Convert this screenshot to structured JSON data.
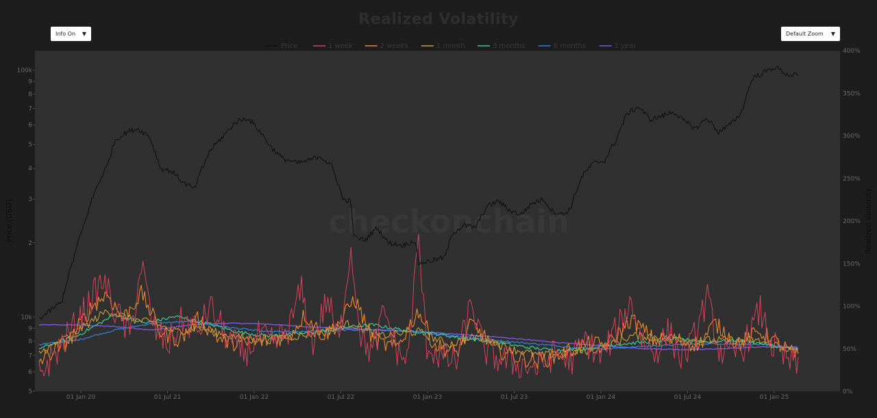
{
  "page": {
    "title": "Realized Volatility",
    "info_dropdown": {
      "selected": "Info On"
    },
    "zoom_dropdown": {
      "selected": "Default Zoom"
    },
    "watermark": "checkonchain",
    "colors": {
      "background": "#1d1d1d",
      "plot_bg": "#303030",
      "price": "#101010",
      "1 week": "#d9435c",
      "2 weeks": "#f08a2c",
      "1 month": "#c9a140",
      "3 months": "#37c98e",
      "6 months": "#2f7fe0",
      "1 year": "#7b59e0"
    }
  },
  "chart_data": {
    "type": "line",
    "title": "Realized Volatility",
    "legend": {
      "position": "top-center",
      "entries": [
        "Price",
        "1 week",
        "2 weeks",
        "1 month",
        "3 months",
        "6 months",
        "1 year"
      ]
    },
    "x_tick_labels": [
      "01 Jan 20",
      "01 Jul 21",
      "01 Jan 22",
      "01 Jul 22",
      "01 Jan 23",
      "01 Jul 23",
      "01 Jan 24",
      "01 Jul 24",
      "01 Jan 25"
    ],
    "y_left": {
      "label": "Price [USD]",
      "scale": "log",
      "range": [
        5000,
        120000
      ],
      "tick_labels": [
        "100k",
        "9",
        "8",
        "7",
        "6",
        "5",
        "4",
        "3",
        "2",
        "10k",
        "9",
        "8",
        "7",
        "6",
        "5"
      ]
    },
    "y_right": {
      "label": "Realized Volatility",
      "range": [
        0,
        400
      ],
      "tick_labels": [
        "0%",
        "50%",
        "100%",
        "150%",
        "200%",
        "250%",
        "300%",
        "350%",
        "400%"
      ]
    },
    "grid": false,
    "price_anchors": [
      {
        "x": 0.0,
        "y": 9800
      },
      {
        "x": 0.03,
        "y": 11500
      },
      {
        "x": 0.045,
        "y": 17000
      },
      {
        "x": 0.06,
        "y": 24000
      },
      {
        "x": 0.075,
        "y": 33000
      },
      {
        "x": 0.09,
        "y": 41000
      },
      {
        "x": 0.1,
        "y": 52000
      },
      {
        "x": 0.115,
        "y": 56000
      },
      {
        "x": 0.13,
        "y": 58000
      },
      {
        "x": 0.145,
        "y": 54000
      },
      {
        "x": 0.16,
        "y": 40000
      },
      {
        "x": 0.175,
        "y": 39000
      },
      {
        "x": 0.19,
        "y": 35000
      },
      {
        "x": 0.205,
        "y": 33000
      },
      {
        "x": 0.225,
        "y": 47000
      },
      {
        "x": 0.245,
        "y": 55000
      },
      {
        "x": 0.26,
        "y": 62000
      },
      {
        "x": 0.275,
        "y": 64000
      },
      {
        "x": 0.29,
        "y": 57000
      },
      {
        "x": 0.305,
        "y": 49000
      },
      {
        "x": 0.32,
        "y": 44000
      },
      {
        "x": 0.34,
        "y": 42000
      },
      {
        "x": 0.355,
        "y": 43000
      },
      {
        "x": 0.37,
        "y": 45000
      },
      {
        "x": 0.385,
        "y": 41000
      },
      {
        "x": 0.395,
        "y": 34000
      },
      {
        "x": 0.4,
        "y": 30000
      },
      {
        "x": 0.41,
        "y": 29500
      },
      {
        "x": 0.415,
        "y": 21000
      },
      {
        "x": 0.43,
        "y": 20500
      },
      {
        "x": 0.445,
        "y": 23000
      },
      {
        "x": 0.46,
        "y": 20000
      },
      {
        "x": 0.48,
        "y": 19500
      },
      {
        "x": 0.495,
        "y": 20500
      },
      {
        "x": 0.5,
        "y": 16500
      },
      {
        "x": 0.52,
        "y": 17000
      },
      {
        "x": 0.535,
        "y": 17500
      },
      {
        "x": 0.545,
        "y": 22000
      },
      {
        "x": 0.56,
        "y": 23500
      },
      {
        "x": 0.575,
        "y": 23000
      },
      {
        "x": 0.59,
        "y": 28000
      },
      {
        "x": 0.605,
        "y": 29500
      },
      {
        "x": 0.62,
        "y": 27000
      },
      {
        "x": 0.635,
        "y": 26000
      },
      {
        "x": 0.65,
        "y": 29000
      },
      {
        "x": 0.665,
        "y": 30000
      },
      {
        "x": 0.675,
        "y": 27000
      },
      {
        "x": 0.69,
        "y": 26000
      },
      {
        "x": 0.7,
        "y": 27500
      },
      {
        "x": 0.715,
        "y": 37000
      },
      {
        "x": 0.73,
        "y": 42000
      },
      {
        "x": 0.745,
        "y": 43000
      },
      {
        "x": 0.76,
        "y": 52000
      },
      {
        "x": 0.775,
        "y": 67000
      },
      {
        "x": 0.79,
        "y": 71000
      },
      {
        "x": 0.805,
        "y": 63000
      },
      {
        "x": 0.82,
        "y": 65000
      },
      {
        "x": 0.835,
        "y": 68000
      },
      {
        "x": 0.85,
        "y": 62000
      },
      {
        "x": 0.865,
        "y": 58000
      },
      {
        "x": 0.88,
        "y": 64000
      },
      {
        "x": 0.895,
        "y": 56000
      },
      {
        "x": 0.91,
        "y": 60000
      },
      {
        "x": 0.925,
        "y": 67000
      },
      {
        "x": 0.94,
        "y": 93000
      },
      {
        "x": 0.955,
        "y": 98000
      },
      {
        "x": 0.97,
        "y": 103000
      },
      {
        "x": 0.985,
        "y": 96000
      },
      {
        "x": 1.0,
        "y": 95000
      }
    ],
    "vol_anchors": {
      "1 week": [
        {
          "x": 0.0,
          "y": 20
        },
        {
          "x": 0.03,
          "y": 55
        },
        {
          "x": 0.05,
          "y": 80
        },
        {
          "x": 0.07,
          "y": 110
        },
        {
          "x": 0.085,
          "y": 130
        },
        {
          "x": 0.1,
          "y": 95
        },
        {
          "x": 0.12,
          "y": 65
        },
        {
          "x": 0.135,
          "y": 150
        },
        {
          "x": 0.15,
          "y": 75
        },
        {
          "x": 0.17,
          "y": 55
        },
        {
          "x": 0.19,
          "y": 85
        },
        {
          "x": 0.21,
          "y": 70
        },
        {
          "x": 0.225,
          "y": 100
        },
        {
          "x": 0.25,
          "y": 60
        },
        {
          "x": 0.27,
          "y": 45
        },
        {
          "x": 0.29,
          "y": 65
        },
        {
          "x": 0.31,
          "y": 55
        },
        {
          "x": 0.33,
          "y": 75
        },
        {
          "x": 0.345,
          "y": 120
        },
        {
          "x": 0.36,
          "y": 55
        },
        {
          "x": 0.38,
          "y": 110
        },
        {
          "x": 0.395,
          "y": 55
        },
        {
          "x": 0.41,
          "y": 170
        },
        {
          "x": 0.425,
          "y": 60
        },
        {
          "x": 0.44,
          "y": 45
        },
        {
          "x": 0.455,
          "y": 95
        },
        {
          "x": 0.47,
          "y": 50
        },
        {
          "x": 0.485,
          "y": 35
        },
        {
          "x": 0.5,
          "y": 180
        },
        {
          "x": 0.51,
          "y": 55
        },
        {
          "x": 0.53,
          "y": 40
        },
        {
          "x": 0.55,
          "y": 35
        },
        {
          "x": 0.57,
          "y": 105
        },
        {
          "x": 0.585,
          "y": 50
        },
        {
          "x": 0.6,
          "y": 40
        },
        {
          "x": 0.62,
          "y": 35
        },
        {
          "x": 0.64,
          "y": 30
        },
        {
          "x": 0.66,
          "y": 28
        },
        {
          "x": 0.68,
          "y": 45
        },
        {
          "x": 0.7,
          "y": 35
        },
        {
          "x": 0.72,
          "y": 60
        },
        {
          "x": 0.74,
          "y": 40
        },
        {
          "x": 0.76,
          "y": 70
        },
        {
          "x": 0.78,
          "y": 105
        },
        {
          "x": 0.795,
          "y": 60
        },
        {
          "x": 0.81,
          "y": 45
        },
        {
          "x": 0.83,
          "y": 70
        },
        {
          "x": 0.845,
          "y": 40
        },
        {
          "x": 0.86,
          "y": 55
        },
        {
          "x": 0.88,
          "y": 110
        },
        {
          "x": 0.895,
          "y": 50
        },
        {
          "x": 0.91,
          "y": 40
        },
        {
          "x": 0.93,
          "y": 55
        },
        {
          "x": 0.95,
          "y": 95
        },
        {
          "x": 0.965,
          "y": 55
        },
        {
          "x": 0.98,
          "y": 40
        },
        {
          "x": 1.0,
          "y": 30
        }
      ],
      "2 weeks": [
        {
          "x": 0.0,
          "y": 35
        },
        {
          "x": 0.04,
          "y": 60
        },
        {
          "x": 0.07,
          "y": 100
        },
        {
          "x": 0.09,
          "y": 115
        },
        {
          "x": 0.11,
          "y": 85
        },
        {
          "x": 0.135,
          "y": 115
        },
        {
          "x": 0.16,
          "y": 70
        },
        {
          "x": 0.185,
          "y": 60
        },
        {
          "x": 0.21,
          "y": 85
        },
        {
          "x": 0.24,
          "y": 60
        },
        {
          "x": 0.27,
          "y": 55
        },
        {
          "x": 0.3,
          "y": 60
        },
        {
          "x": 0.33,
          "y": 65
        },
        {
          "x": 0.35,
          "y": 90
        },
        {
          "x": 0.375,
          "y": 65
        },
        {
          "x": 0.4,
          "y": 85
        },
        {
          "x": 0.415,
          "y": 110
        },
        {
          "x": 0.44,
          "y": 60
        },
        {
          "x": 0.47,
          "y": 50
        },
        {
          "x": 0.5,
          "y": 95
        },
        {
          "x": 0.52,
          "y": 55
        },
        {
          "x": 0.55,
          "y": 45
        },
        {
          "x": 0.57,
          "y": 80
        },
        {
          "x": 0.6,
          "y": 50
        },
        {
          "x": 0.63,
          "y": 40
        },
        {
          "x": 0.66,
          "y": 35
        },
        {
          "x": 0.69,
          "y": 45
        },
        {
          "x": 0.72,
          "y": 55
        },
        {
          "x": 0.75,
          "y": 55
        },
        {
          "x": 0.78,
          "y": 85
        },
        {
          "x": 0.81,
          "y": 60
        },
        {
          "x": 0.84,
          "y": 60
        },
        {
          "x": 0.87,
          "y": 55
        },
        {
          "x": 0.89,
          "y": 80
        },
        {
          "x": 0.92,
          "y": 55
        },
        {
          "x": 0.95,
          "y": 70
        },
        {
          "x": 0.975,
          "y": 55
        },
        {
          "x": 1.0,
          "y": 40
        }
      ],
      "1 month": [
        {
          "x": 0.0,
          "y": 45
        },
        {
          "x": 0.05,
          "y": 70
        },
        {
          "x": 0.09,
          "y": 95
        },
        {
          "x": 0.12,
          "y": 85
        },
        {
          "x": 0.15,
          "y": 80
        },
        {
          "x": 0.18,
          "y": 70
        },
        {
          "x": 0.21,
          "y": 75
        },
        {
          "x": 0.25,
          "y": 65
        },
        {
          "x": 0.3,
          "y": 60
        },
        {
          "x": 0.34,
          "y": 65
        },
        {
          "x": 0.38,
          "y": 70
        },
        {
          "x": 0.41,
          "y": 80
        },
        {
          "x": 0.45,
          "y": 65
        },
        {
          "x": 0.5,
          "y": 70
        },
        {
          "x": 0.54,
          "y": 55
        },
        {
          "x": 0.58,
          "y": 65
        },
        {
          "x": 0.62,
          "y": 50
        },
        {
          "x": 0.66,
          "y": 42
        },
        {
          "x": 0.7,
          "y": 45
        },
        {
          "x": 0.74,
          "y": 50
        },
        {
          "x": 0.78,
          "y": 65
        },
        {
          "x": 0.82,
          "y": 65
        },
        {
          "x": 0.86,
          "y": 60
        },
        {
          "x": 0.9,
          "y": 60
        },
        {
          "x": 0.94,
          "y": 60
        },
        {
          "x": 0.97,
          "y": 55
        },
        {
          "x": 1.0,
          "y": 45
        }
      ],
      "3 months": [
        {
          "x": 0.0,
          "y": 50
        },
        {
          "x": 0.05,
          "y": 65
        },
        {
          "x": 0.1,
          "y": 90
        },
        {
          "x": 0.14,
          "y": 80
        },
        {
          "x": 0.18,
          "y": 88
        },
        {
          "x": 0.22,
          "y": 80
        },
        {
          "x": 0.26,
          "y": 70
        },
        {
          "x": 0.3,
          "y": 65
        },
        {
          "x": 0.35,
          "y": 68
        },
        {
          "x": 0.4,
          "y": 75
        },
        {
          "x": 0.44,
          "y": 78
        },
        {
          "x": 0.48,
          "y": 72
        },
        {
          "x": 0.52,
          "y": 68
        },
        {
          "x": 0.56,
          "y": 62
        },
        {
          "x": 0.6,
          "y": 58
        },
        {
          "x": 0.64,
          "y": 52
        },
        {
          "x": 0.68,
          "y": 48
        },
        {
          "x": 0.72,
          "y": 50
        },
        {
          "x": 0.76,
          "y": 55
        },
        {
          "x": 0.8,
          "y": 58
        },
        {
          "x": 0.84,
          "y": 62
        },
        {
          "x": 0.88,
          "y": 58
        },
        {
          "x": 0.92,
          "y": 60
        },
        {
          "x": 0.96,
          "y": 55
        },
        {
          "x": 1.0,
          "y": 48
        }
      ],
      "6 months": [
        {
          "x": 0.0,
          "y": 55
        },
        {
          "x": 0.05,
          "y": 60
        },
        {
          "x": 0.1,
          "y": 72
        },
        {
          "x": 0.15,
          "y": 80
        },
        {
          "x": 0.2,
          "y": 82
        },
        {
          "x": 0.25,
          "y": 75
        },
        {
          "x": 0.3,
          "y": 70
        },
        {
          "x": 0.35,
          "y": 70
        },
        {
          "x": 0.4,
          "y": 72
        },
        {
          "x": 0.45,
          "y": 72
        },
        {
          "x": 0.5,
          "y": 70
        },
        {
          "x": 0.55,
          "y": 65
        },
        {
          "x": 0.6,
          "y": 60
        },
        {
          "x": 0.65,
          "y": 56
        },
        {
          "x": 0.7,
          "y": 52
        },
        {
          "x": 0.75,
          "y": 50
        },
        {
          "x": 0.8,
          "y": 53
        },
        {
          "x": 0.85,
          "y": 55
        },
        {
          "x": 0.9,
          "y": 56
        },
        {
          "x": 0.95,
          "y": 55
        },
        {
          "x": 1.0,
          "y": 50
        }
      ],
      "1 year": [
        {
          "x": 0.0,
          "y": 78
        },
        {
          "x": 0.05,
          "y": 78
        },
        {
          "x": 0.1,
          "y": 76
        },
        {
          "x": 0.15,
          "y": 72
        },
        {
          "x": 0.2,
          "y": 78
        },
        {
          "x": 0.25,
          "y": 80
        },
        {
          "x": 0.3,
          "y": 79
        },
        {
          "x": 0.35,
          "y": 76
        },
        {
          "x": 0.4,
          "y": 74
        },
        {
          "x": 0.45,
          "y": 72
        },
        {
          "x": 0.5,
          "y": 70
        },
        {
          "x": 0.55,
          "y": 67
        },
        {
          "x": 0.6,
          "y": 64
        },
        {
          "x": 0.65,
          "y": 60
        },
        {
          "x": 0.7,
          "y": 56
        },
        {
          "x": 0.75,
          "y": 53
        },
        {
          "x": 0.8,
          "y": 50
        },
        {
          "x": 0.85,
          "y": 49
        },
        {
          "x": 0.9,
          "y": 50
        },
        {
          "x": 0.95,
          "y": 52
        },
        {
          "x": 1.0,
          "y": 52
        }
      ]
    }
  }
}
